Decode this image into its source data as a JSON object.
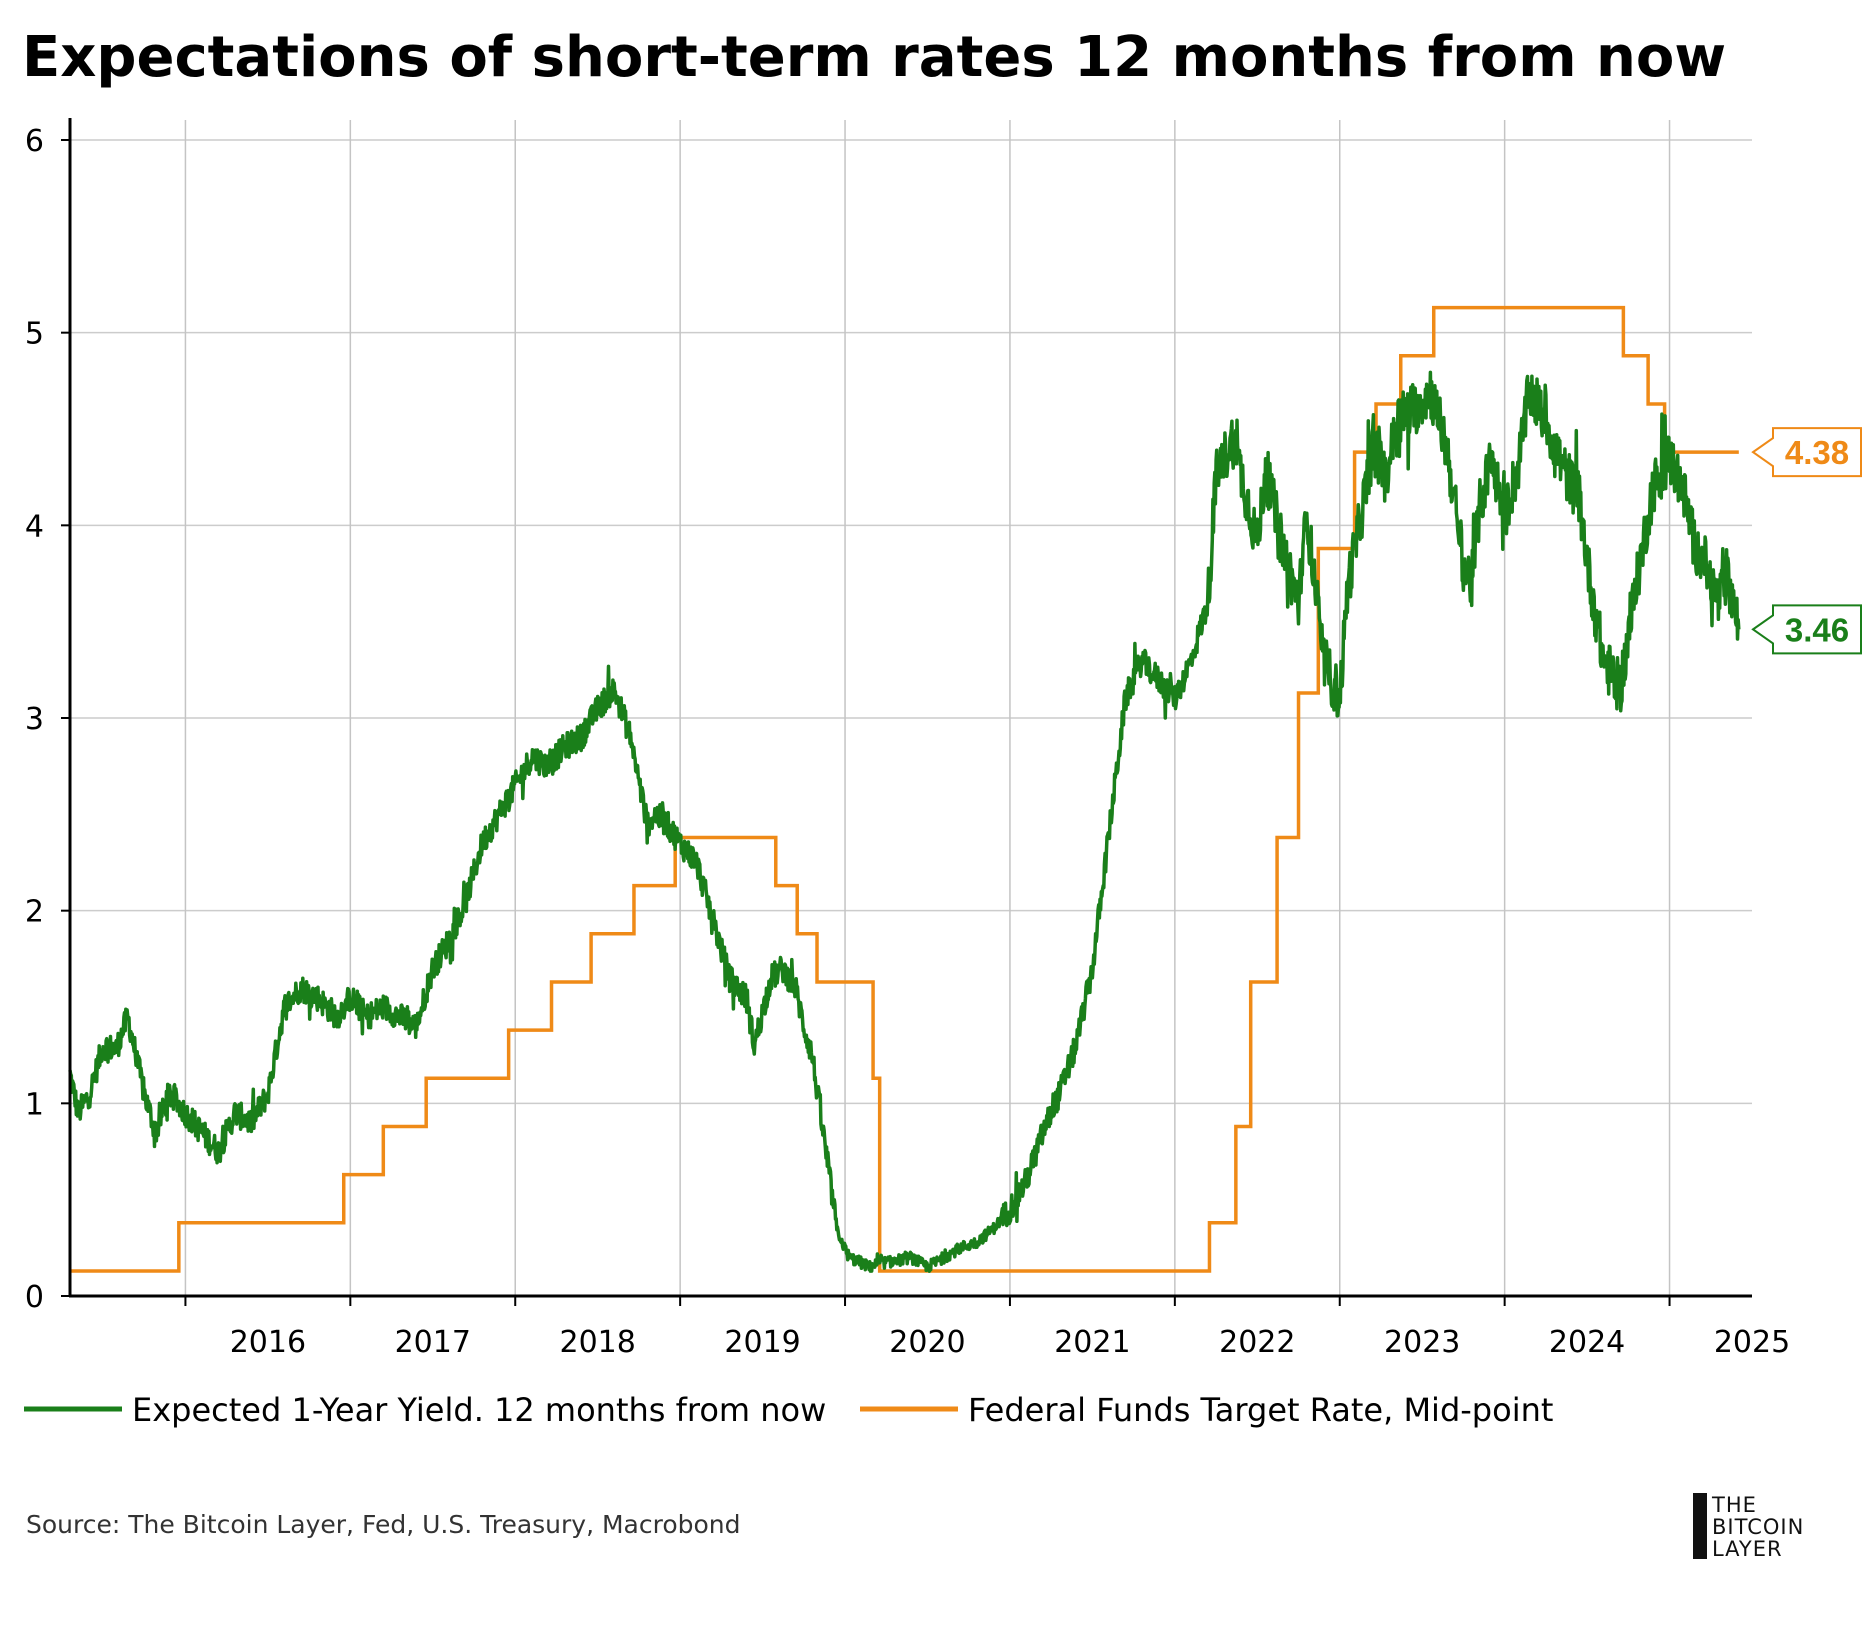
{
  "chart_data": {
    "type": "line",
    "title": "Expectations of short-term rates 12 months from now",
    "xlabel": "",
    "ylabel": "",
    "xlim": [
      2015.3,
      2025.5
    ],
    "ylim": [
      0,
      6
    ],
    "y_ticks": [
      "0",
      "1",
      "2",
      "3",
      "4",
      "5",
      "6"
    ],
    "x_ticks": [
      "2016",
      "2017",
      "2018",
      "2019",
      "2020",
      "2021",
      "2022",
      "2023",
      "2024",
      "2025"
    ],
    "grid": true,
    "legend_position": "bottom",
    "series": [
      {
        "name": "Expected 1-Year Yield. 12 months from now",
        "color": "#1a7f1a",
        "end_label": "3.46",
        "x": [
          2015.3,
          2015.35,
          2015.42,
          2015.5,
          2015.58,
          2015.65,
          2015.75,
          2015.82,
          2015.9,
          2016.0,
          2016.1,
          2016.2,
          2016.3,
          2016.4,
          2016.5,
          2016.6,
          2016.7,
          2016.8,
          2016.92,
          2017.0,
          2017.1,
          2017.2,
          2017.3,
          2017.4,
          2017.5,
          2017.6,
          2017.7,
          2017.8,
          2017.9,
          2018.0,
          2018.1,
          2018.2,
          2018.3,
          2018.4,
          2018.5,
          2018.6,
          2018.7,
          2018.8,
          2018.85,
          2018.92,
          2019.0,
          2019.1,
          2019.2,
          2019.3,
          2019.4,
          2019.45,
          2019.55,
          2019.62,
          2019.7,
          2019.75,
          2019.8,
          2019.9,
          2019.95,
          2020.02,
          2020.08,
          2020.15,
          2020.2,
          2020.3,
          2020.4,
          2020.5,
          2020.6,
          2020.7,
          2020.8,
          2020.9,
          2021.0,
          2021.1,
          2021.2,
          2021.3,
          2021.4,
          2021.5,
          2021.6,
          2021.7,
          2021.8,
          2021.9,
          2022.0,
          2022.1,
          2022.2,
          2022.25,
          2022.35,
          2022.45,
          2022.5,
          2022.55,
          2022.65,
          2022.75,
          2022.8,
          2022.85,
          2022.9,
          2023.0,
          2023.05,
          2023.12,
          2023.2,
          2023.28,
          2023.35,
          2023.45,
          2023.55,
          2023.65,
          2023.75,
          2023.8,
          2023.85,
          2023.92,
          2024.0,
          2024.08,
          2024.15,
          2024.25,
          2024.35,
          2024.45,
          2024.52,
          2024.6,
          2024.7,
          2024.8,
          2024.9,
          2025.0,
          2025.08,
          2025.15,
          2025.2,
          2025.25,
          2025.3,
          2025.35,
          2025.42
        ],
        "values": [
          1.15,
          0.95,
          1.05,
          1.3,
          1.28,
          1.45,
          1.05,
          0.85,
          1.05,
          0.95,
          0.85,
          0.75,
          0.95,
          0.9,
          1.05,
          1.5,
          1.6,
          1.55,
          1.45,
          1.55,
          1.45,
          1.5,
          1.45,
          1.4,
          1.7,
          1.85,
          2.05,
          2.35,
          2.5,
          2.65,
          2.8,
          2.75,
          2.85,
          2.9,
          3.05,
          3.15,
          2.9,
          2.45,
          2.5,
          2.45,
          2.35,
          2.25,
          1.95,
          1.65,
          1.55,
          1.3,
          1.65,
          1.7,
          1.6,
          1.4,
          1.25,
          0.65,
          0.35,
          0.2,
          0.18,
          0.15,
          0.17,
          0.18,
          0.2,
          0.15,
          0.2,
          0.25,
          0.28,
          0.35,
          0.45,
          0.6,
          0.85,
          1.05,
          1.3,
          1.7,
          2.4,
          3.1,
          3.3,
          3.2,
          3.1,
          3.3,
          3.6,
          4.25,
          4.45,
          4.1,
          3.9,
          4.3,
          3.9,
          3.6,
          4.05,
          3.7,
          3.3,
          3.1,
          3.7,
          4.0,
          4.4,
          4.25,
          4.55,
          4.6,
          4.7,
          4.4,
          3.8,
          3.7,
          4.1,
          4.35,
          4.05,
          4.3,
          4.7,
          4.55,
          4.3,
          4.15,
          3.7,
          3.3,
          3.15,
          3.7,
          4.2,
          4.35,
          4.2,
          3.9,
          3.85,
          3.7,
          3.6,
          3.75,
          3.46
        ]
      },
      {
        "name": "Federal Funds Target Rate, Mid-point",
        "color": "#ef8a17",
        "end_label": "4.38",
        "step": true,
        "x": [
          2015.3,
          2015.96,
          2016.96,
          2017.2,
          2017.46,
          2017.96,
          2018.22,
          2018.46,
          2018.72,
          2018.97,
          2019.58,
          2019.71,
          2019.83,
          2020.17,
          2020.21,
          2022.21,
          2022.37,
          2022.46,
          2022.62,
          2022.75,
          2022.87,
          2023.09,
          2023.22,
          2023.37,
          2023.57,
          2024.72,
          2024.87,
          2024.97,
          2025.42
        ],
        "values": [
          0.13,
          0.38,
          0.63,
          0.88,
          1.13,
          1.38,
          1.63,
          1.88,
          2.13,
          2.38,
          2.13,
          1.88,
          1.63,
          1.13,
          0.13,
          0.38,
          0.88,
          1.63,
          2.38,
          3.13,
          3.88,
          4.38,
          4.63,
          4.88,
          5.13,
          4.88,
          4.63,
          4.38,
          4.38
        ]
      }
    ]
  },
  "source_text": "Source: The Bitcoin Layer, Fed, U.S. Treasury, Macrobond",
  "logo": {
    "line1": "THE",
    "line2": "BITCOIN",
    "line3": "LAYER"
  }
}
